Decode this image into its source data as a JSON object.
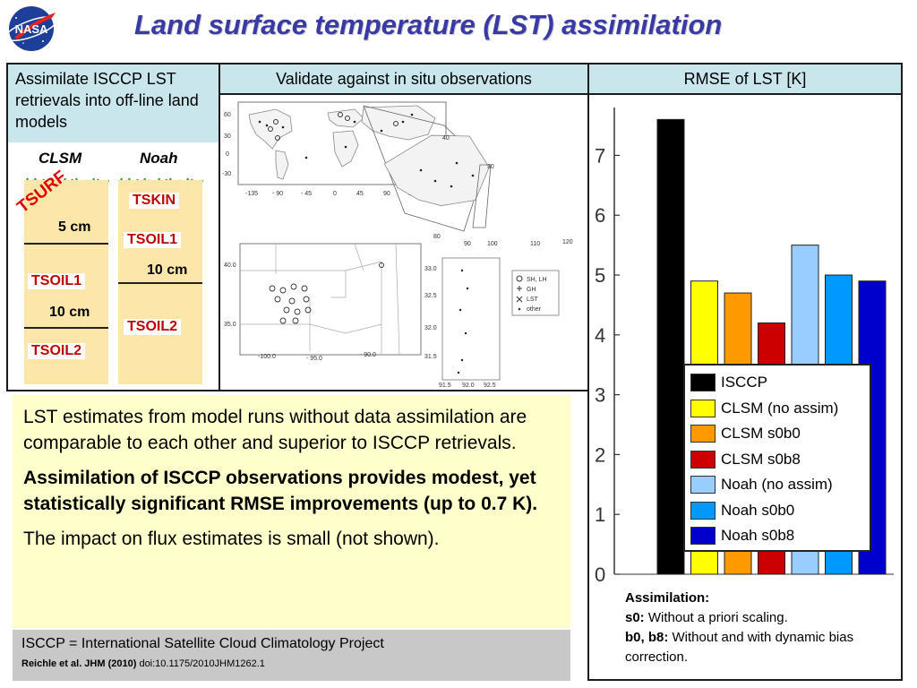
{
  "slide": {
    "title": "Land surface temperature (LST) assimilation",
    "logo_text": "NASA"
  },
  "headers": {
    "h1": "Assimilate ISCCP LST retrievals into off-line land models",
    "h2": "Validate against in situ observations",
    "h3": "RMSE of LST [K]"
  },
  "soil": {
    "clsm_label": "CLSM",
    "noah_label": "Noah",
    "tsurf": "TSURF",
    "clsm_depth1": "5 cm",
    "clsm_tsoil1": "TSOIL1",
    "clsm_depth2": "10 cm",
    "clsm_tsoil2": "TSOIL2",
    "noah_tskin": "TSKIN",
    "noah_tsoil1": "TSOIL1",
    "noah_depth": "10 cm",
    "noah_tsoil2": "TSOIL2"
  },
  "map": {
    "lat_labels": [
      "60",
      "30",
      "0",
      "-30"
    ],
    "lon_labels": [
      "-135",
      "- 90",
      "- 45",
      "0",
      "45",
      "90",
      "135",
      "180"
    ],
    "asia_labels": [
      "40",
      "30",
      "80",
      "90",
      "100",
      "110",
      "120"
    ],
    "us_lat_labels": [
      "40.0",
      "35.0"
    ],
    "us_lon_labels": [
      "-100.0",
      "- 95.0",
      "- 90.0"
    ],
    "is_lat_labels": [
      "33.0",
      "32.5",
      "32.0",
      "31.5"
    ],
    "is_lon_labels": [
      "91.5",
      "92.0",
      "92.5"
    ],
    "legend": [
      "SH, LH",
      "GH",
      "LST",
      "other"
    ]
  },
  "chart_data": {
    "type": "bar",
    "title": "RMSE of LST [K]",
    "categories": [
      "ISCCP",
      "CLSM (no assim)",
      "CLSM s0b0",
      "CLSM s0b8",
      "Noah (no assim)",
      "Noah s0b0",
      "Noah s0b8"
    ],
    "values": [
      7.6,
      4.9,
      4.7,
      4.2,
      5.5,
      5.0,
      4.9
    ],
    "colors": [
      "#000000",
      "#ffff00",
      "#ff9900",
      "#cc0000",
      "#99ccff",
      "#0099ff",
      "#0000cc"
    ],
    "ylim": [
      0,
      7.8
    ],
    "yticks": [
      "0",
      "1",
      "2",
      "3",
      "4",
      "5",
      "6",
      "7"
    ],
    "legend_position": "bottom-right",
    "grid": false
  },
  "text": {
    "para1": "LST estimates from model runs without data assimilation are comparable to each other and superior to ISCCP retrievals.",
    "para2": "Assimilation of ISCCP observations provides modest, yet statistically significant RMSE improvements (up to 0.7 K).",
    "para3": "The impact on flux estimates is small (not shown)."
  },
  "footer": {
    "line1": "ISCCP = International Satellite Cloud Climatology Project",
    "citation_bold": "Reichle et al.  JHM (2010)",
    "citation_doi": " doi:10.1175/2010JHM1262.1"
  },
  "assimilation_note": {
    "title": "Assimilation:",
    "s0_key": "s0:",
    "s0_text": " Without a priori scaling.",
    "b_key": "b0, b8:",
    "b_text": " Without and with dynamic bias correction."
  }
}
